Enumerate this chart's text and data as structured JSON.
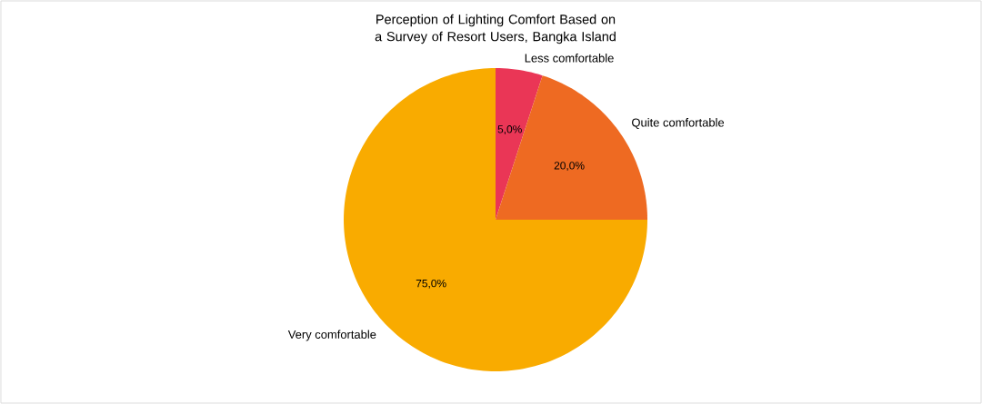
{
  "chart_data": {
    "type": "pie",
    "title": "Perception of Lighting Comfort Based on a Survey of Resort Users, Bangka Island",
    "categories": [
      "Less comfortable",
      "Quite comfortable",
      "Very comfortable"
    ],
    "values": [
      5,
      20,
      75
    ],
    "value_labels": [
      "5,0%",
      "20,0%",
      "75,0%"
    ],
    "colors": [
      "#ea3656",
      "#ee6a22",
      "#f9ab00"
    ],
    "legend": false
  }
}
